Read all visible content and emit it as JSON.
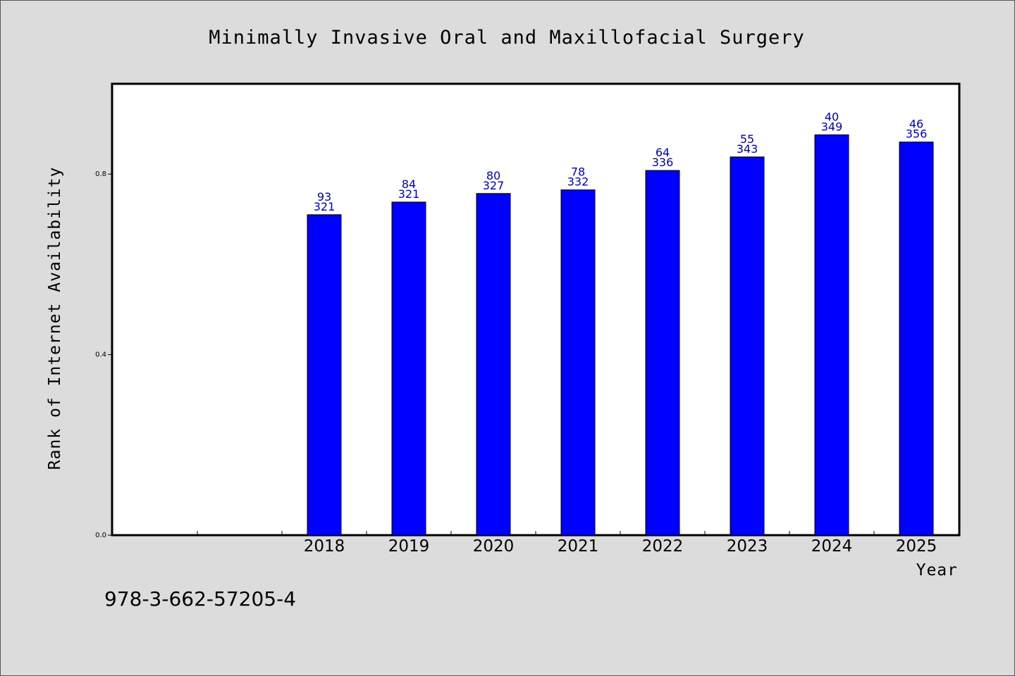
{
  "chart_data": {
    "type": "bar",
    "title": "Minimally Invasive Oral and Maxillofacial Surgery",
    "xlabel": "Year",
    "ylabel": "Rank of Internet Availability",
    "categories": [
      "",
      "",
      "2018",
      "2019",
      "2020",
      "2021",
      "2022",
      "2023",
      "2024",
      "2025"
    ],
    "values": [
      null,
      null,
      0.71,
      0.738,
      0.757,
      0.765,
      0.808,
      0.838,
      0.887,
      0.871
    ],
    "bar_labels_top": [
      "",
      "",
      "93",
      "84",
      "80",
      "78",
      "64",
      "55",
      "40",
      "46"
    ],
    "bar_labels_bottom": [
      "",
      "",
      "321",
      "321",
      "327",
      "332",
      "336",
      "343",
      "349",
      "356"
    ],
    "yticks": [
      0.0,
      0.4,
      0.8
    ],
    "ytick_labels": [
      "0.0",
      "0.4",
      "0.8"
    ],
    "ylim": [
      0,
      1.0
    ],
    "grid": false,
    "legend": "none",
    "bar_color": "#0000ff",
    "label_color": "#0000cc",
    "background_color": "#dcdcdc",
    "plot_background_color": "#ffffff"
  },
  "footer": {
    "isbn": "978-3-662-57205-4"
  }
}
